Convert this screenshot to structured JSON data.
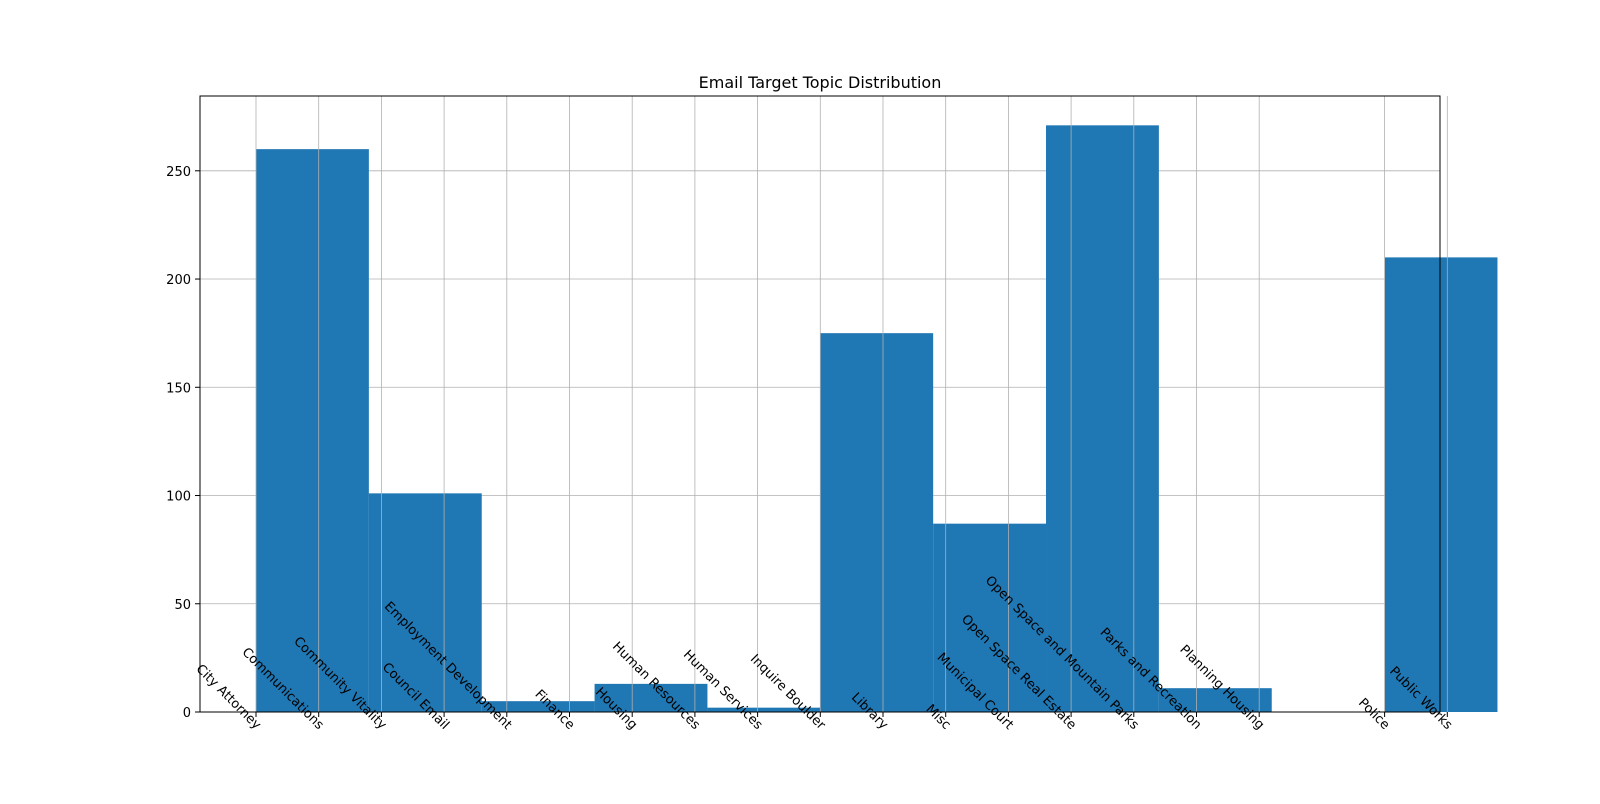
{
  "chart_data": {
    "type": "bar",
    "title": "Email Target Topic Distribution",
    "xlabel": "",
    "ylabel": "",
    "grid": true,
    "legend": "none",
    "bar_color": "#1f77b4",
    "x_ticks": [
      "City Attorney",
      "Communications",
      "Community Vitality",
      "Council Email",
      "Employment Development",
      "Finance",
      "Housing",
      "Human Resources",
      "Human Services",
      "Inquire Boulder",
      "Library",
      "Misc",
      "Municipal Court",
      "Open Space Real Estate",
      "Open Space and Mountain Parks",
      "Parks and Recreation",
      "Planning Housing",
      "Police",
      "Public Works"
    ],
    "x_tick_pos": [
      0,
      1,
      2,
      3,
      4,
      5,
      6,
      7,
      8,
      9,
      10,
      11,
      12,
      13,
      14,
      15,
      16,
      18,
      19
    ],
    "x_range": [
      0,
      19
    ],
    "bins": [
      {
        "start": 0.0,
        "end": 1.8,
        "value": 260
      },
      {
        "start": 1.8,
        "end": 3.6,
        "value": 101
      },
      {
        "start": 3.6,
        "end": 5.4,
        "value": 5
      },
      {
        "start": 5.4,
        "end": 7.2,
        "value": 13
      },
      {
        "start": 7.2,
        "end": 9.0,
        "value": 2
      },
      {
        "start": 9.0,
        "end": 10.8,
        "value": 175
      },
      {
        "start": 10.8,
        "end": 12.6,
        "value": 87
      },
      {
        "start": 12.6,
        "end": 14.4,
        "value": 271
      },
      {
        "start": 14.4,
        "end": 16.2,
        "value": 11
      },
      {
        "start": 16.2,
        "end": 18.0,
        "value": 0
      },
      {
        "start": 18.0,
        "end": 19.8,
        "value": 210
      }
    ],
    "y_ticks": [
      0,
      50,
      100,
      150,
      200,
      250
    ],
    "ylim": [
      0,
      284.55
    ]
  }
}
